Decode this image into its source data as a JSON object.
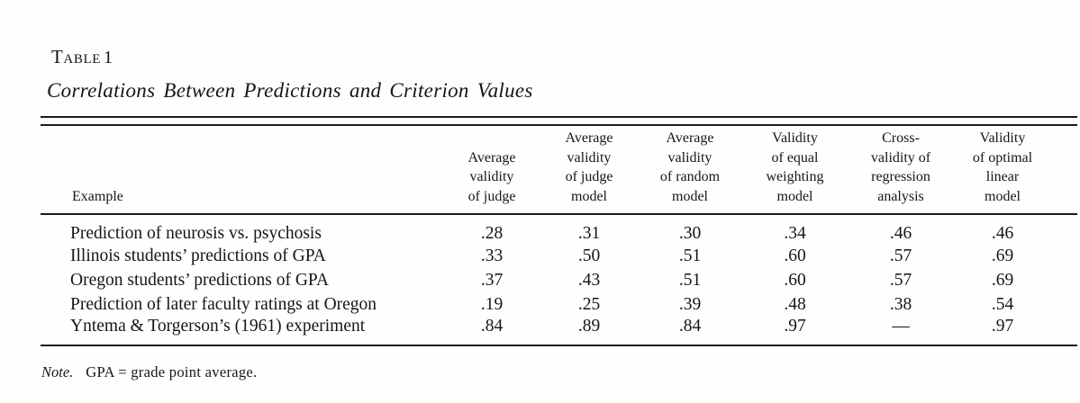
{
  "caption": {
    "label": "Table",
    "number": "1",
    "title": "Correlations Between Predictions and Criterion Values"
  },
  "columns": [
    "Example",
    "Average\nvalidity\nof judge",
    "Average\nvalidity\nof judge\nmodel",
    "Average\nvalidity\nof random\nmodel",
    "Validity\nof equal\nweighting\nmodel",
    "Cross-\nvalidity of\nregression\nanalysis",
    "Validity\nof optimal\nlinear\nmodel"
  ],
  "rows": [
    {
      "example": "Prediction of neurosis vs. psychosis",
      "values": [
        ".28",
        ".31",
        ".30",
        ".34",
        ".46",
        ".46"
      ]
    },
    {
      "example": "Illinois students’ predictions of GPA",
      "values": [
        ".33",
        ".50",
        ".51",
        ".60",
        ".57",
        ".69"
      ]
    },
    {
      "example": "Oregon students’ predictions of GPA",
      "values": [
        ".37",
        ".43",
        ".51",
        ".60",
        ".57",
        ".69"
      ]
    },
    {
      "example": "Prediction of later faculty ratings at Oregon",
      "values": [
        ".19",
        ".25",
        ".39",
        ".48",
        ".38",
        ".54"
      ]
    },
    {
      "example": "Yntema & Torgerson’s (1961) experiment",
      "values": [
        ".84",
        ".89",
        ".84",
        ".97",
        "—",
        ".97"
      ]
    }
  ],
  "note": {
    "prefix": "Note.",
    "text": "GPA = grade point average."
  }
}
